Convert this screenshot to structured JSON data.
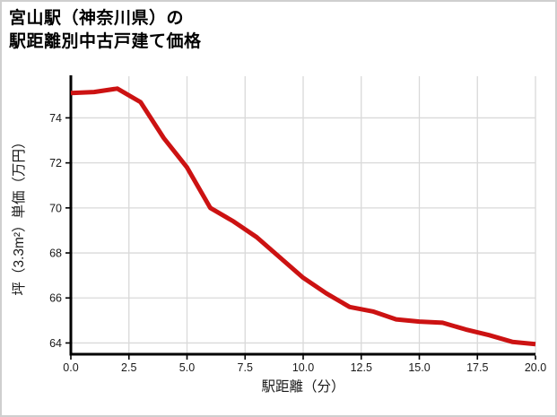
{
  "window": {
    "background": "#ffffff",
    "border_color": "#cfcfcf"
  },
  "title": {
    "line1": "宮山駅（神奈川県）の",
    "line2": "駅距離別中古戸建て価格"
  },
  "chart_data": {
    "type": "line",
    "title": "宮山駅（神奈川県）の駅距離別中古戸建て価格",
    "xlabel": "駅距離（分）",
    "ylabel": "坪（3.3m²）単価（万円）",
    "x": [
      0,
      1,
      2,
      3,
      4,
      5,
      6,
      7,
      8,
      9,
      10,
      11,
      12,
      13,
      14,
      15,
      16,
      17,
      18,
      19,
      20
    ],
    "y": [
      75.1,
      75.15,
      75.3,
      74.7,
      73.1,
      71.8,
      70.0,
      69.4,
      68.7,
      67.8,
      66.9,
      66.2,
      65.6,
      65.4,
      65.05,
      64.95,
      64.9,
      64.6,
      64.35,
      64.05,
      63.95
    ],
    "xlim": [
      0,
      20
    ],
    "ylim": [
      63.5,
      75.85
    ],
    "xticks": [
      0,
      2.5,
      5,
      7.5,
      10,
      12.5,
      15,
      17.5,
      20
    ],
    "xtick_labels": [
      "0.0",
      "2.5",
      "5.0",
      "7.5",
      "10.0",
      "12.5",
      "15.0",
      "17.5",
      "20.0"
    ],
    "yticks": [
      64,
      66,
      68,
      70,
      72,
      74
    ],
    "ytick_labels": [
      "64",
      "66",
      "68",
      "70",
      "72",
      "74"
    ],
    "grid": true,
    "legend": "none",
    "line_color": "#cc1212",
    "line_width": 5,
    "grid_color": "#d9d9d9",
    "axis_color": "#000000",
    "tick_label_color": "#1a1a1a",
    "tick_label_size": 12.5,
    "axis_label_size": 15.5
  }
}
